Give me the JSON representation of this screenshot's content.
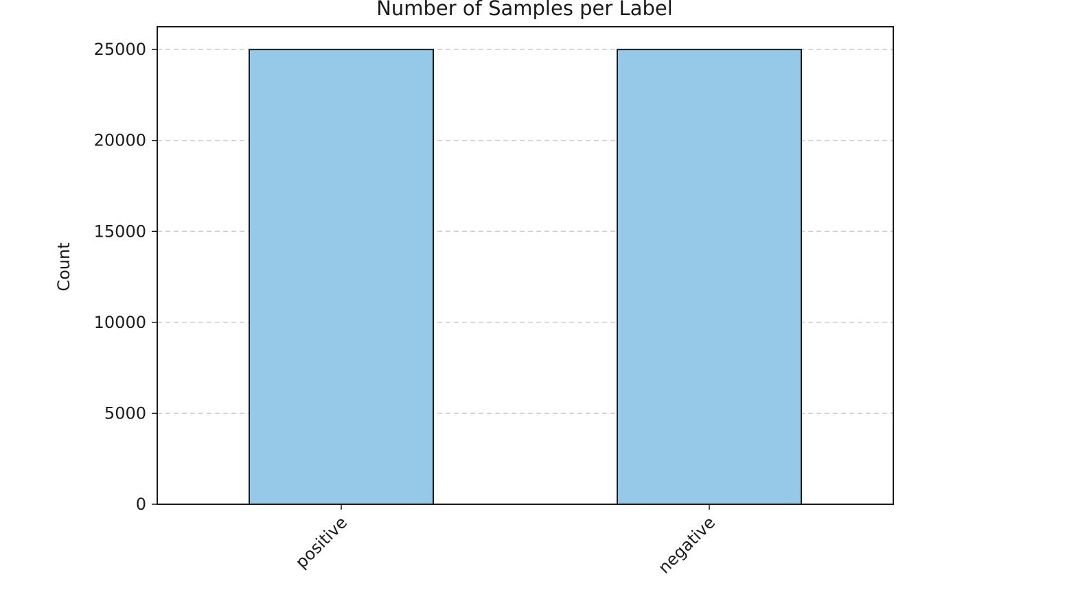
{
  "chart_data": {
    "type": "bar",
    "title": "Number of Samples per Label",
    "xlabel": "",
    "ylabel": "Count",
    "categories": [
      "positive",
      "negative"
    ],
    "values": [
      25000,
      25000
    ],
    "ylim": [
      0,
      26250
    ],
    "yticks": [
      0,
      5000,
      10000,
      15000,
      20000,
      25000
    ],
    "ytick_labels": [
      "0",
      "5000",
      "10000",
      "15000",
      "20000",
      "25000"
    ],
    "grid": "y-dashed",
    "bar_color": "#95c9e7",
    "bar_edge_color": "#1a1a1a",
    "grid_color": "#cccccc",
    "xtick_rotation": 45
  }
}
